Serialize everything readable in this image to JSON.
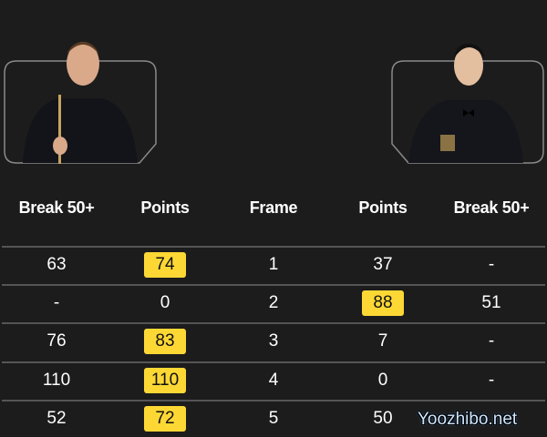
{
  "players": [
    {
      "side": "left",
      "photo": "player-photo-left"
    },
    {
      "side": "right",
      "photo": "player-photo-right"
    }
  ],
  "headers": [
    "Break 50+",
    "Points",
    "Frame",
    "Points",
    "Break 50+"
  ],
  "highlight_color": "#fdd835",
  "rows": [
    {
      "break1": "63",
      "points1": "74",
      "frame": "1",
      "points2": "37",
      "break2": "-",
      "winner": "left"
    },
    {
      "break1": "-",
      "points1": "0",
      "frame": "2",
      "points2": "88",
      "break2": "51",
      "winner": "right"
    },
    {
      "break1": "76",
      "points1": "83",
      "frame": "3",
      "points2": "7",
      "break2": "-",
      "winner": "left"
    },
    {
      "break1": "110",
      "points1": "110",
      "frame": "4",
      "points2": "0",
      "break2": "-",
      "winner": "left"
    },
    {
      "break1": "52",
      "points1": "72",
      "frame": "5",
      "points2": "50",
      "break2": "",
      "winner": "left"
    }
  ],
  "watermark": "Yoozhibo.net"
}
